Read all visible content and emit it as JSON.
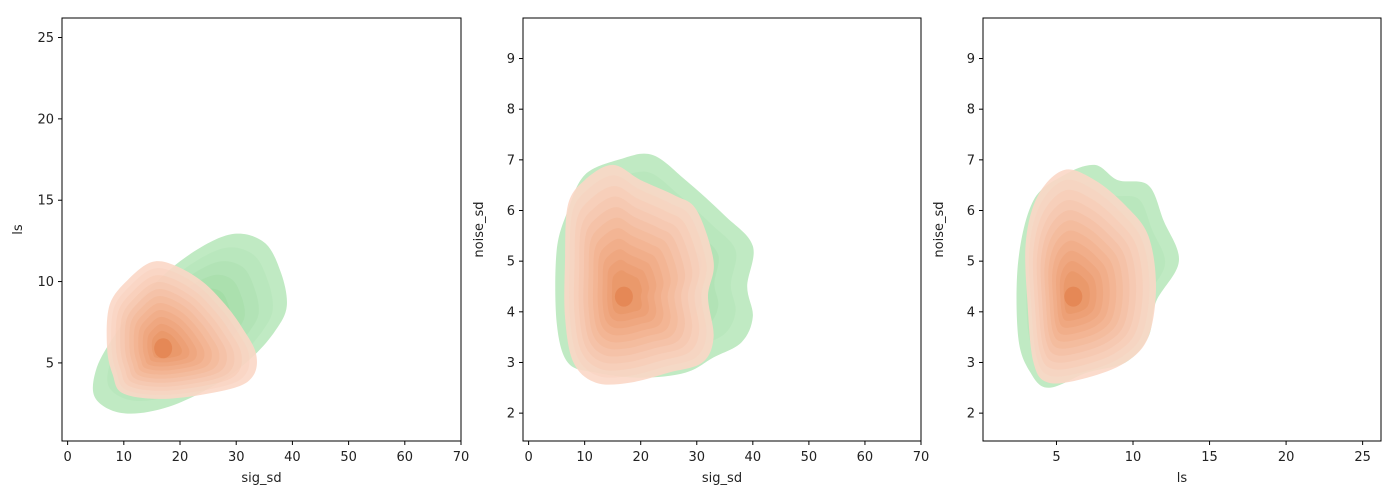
{
  "colors": {
    "green_fill": "#b5e6b9",
    "green_dense": "#8ed28f",
    "peach_fill": "#fbd7c6",
    "peach_dense": "#e8905e",
    "core": "#e07a45",
    "axis": "#000000"
  },
  "chart_data": [
    {
      "type": "kde-contour",
      "xlabel": "sig_sd",
      "ylabel": "ls",
      "xlim": [
        -1,
        70
      ],
      "ylim": [
        0.2,
        26.2
      ],
      "xticks": [
        0,
        10,
        20,
        30,
        40,
        50,
        60,
        70
      ],
      "yticks": [
        5,
        10,
        15,
        20,
        25
      ],
      "series": [
        {
          "color": "green",
          "center": [
            22,
            7.2
          ],
          "outer": [
            [
              10,
              1.9
            ],
            [
              18,
              2.3
            ],
            [
              27,
              3.8
            ],
            [
              33,
              5.4
            ],
            [
              37,
              7.0
            ],
            [
              39,
              8.5
            ],
            [
              38,
              10.5
            ],
            [
              35,
              12.4
            ],
            [
              29,
              12.9
            ],
            [
              21,
              11.5
            ],
            [
              14,
              9.3
            ],
            [
              8,
              6.5
            ],
            [
              5,
              4.5
            ],
            [
              5,
              2.8
            ]
          ],
          "levels": 6
        },
        {
          "color": "peach",
          "center": [
            17,
            5.9
          ],
          "outer": [
            [
              10,
              3.1
            ],
            [
              18,
              2.8
            ],
            [
              29,
              3.4
            ],
            [
              33,
              4.2
            ],
            [
              33.5,
              5.6
            ],
            [
              31,
              7.2
            ],
            [
              28,
              8.6
            ],
            [
              24,
              10.0
            ],
            [
              19,
              11.0
            ],
            [
              15,
              11.2
            ],
            [
              11,
              10.2
            ],
            [
              7.5,
              8.6
            ],
            [
              7,
              6.0
            ],
            [
              8,
              4.3
            ]
          ],
          "levels": 11
        }
      ]
    },
    {
      "type": "kde-contour",
      "xlabel": "sig_sd",
      "ylabel": "noise_sd",
      "xlim": [
        -1,
        70
      ],
      "ylim": [
        1.45,
        9.8
      ],
      "xticks": [
        0,
        10,
        20,
        30,
        40,
        50,
        60,
        70
      ],
      "yticks": [
        2,
        3,
        4,
        5,
        6,
        7,
        8,
        9
      ],
      "series": [
        {
          "color": "green",
          "center": [
            19,
            4.7
          ],
          "outer": [
            [
              12,
              2.8
            ],
            [
              20,
              2.7
            ],
            [
              28,
              2.8
            ],
            [
              33,
              3.1
            ],
            [
              38,
              3.4
            ],
            [
              40,
              3.9
            ],
            [
              39,
              4.5
            ],
            [
              40,
              5.3
            ],
            [
              35,
              5.9
            ],
            [
              28,
              6.6
            ],
            [
              22,
              7.1
            ],
            [
              16,
              7.0
            ],
            [
              10,
              6.7
            ],
            [
              7,
              6.0
            ],
            [
              5,
              5.2
            ],
            [
              5,
              3.8
            ],
            [
              7,
              3.0
            ]
          ],
          "levels": 6
        },
        {
          "color": "peach",
          "center": [
            17,
            4.3
          ],
          "outer": [
            [
              12,
              2.6
            ],
            [
              18,
              2.6
            ],
            [
              25,
              2.8
            ],
            [
              31,
              3.0
            ],
            [
              33,
              3.5
            ],
            [
              32,
              4.3
            ],
            [
              33,
              5.0
            ],
            [
              30,
              6.0
            ],
            [
              26,
              6.3
            ],
            [
              20,
              6.6
            ],
            [
              15,
              6.9
            ],
            [
              10,
              6.6
            ],
            [
              7,
              6.1
            ],
            [
              6.5,
              5.0
            ],
            [
              6.5,
              3.9
            ],
            [
              8,
              3.0
            ]
          ],
          "levels": 11
        }
      ]
    },
    {
      "type": "kde-contour",
      "xlabel": "ls",
      "ylabel": "noise_sd",
      "xlim": [
        0.2,
        26.2
      ],
      "ylim": [
        1.45,
        9.8
      ],
      "xticks": [
        5,
        10,
        15,
        20,
        25
      ],
      "yticks": [
        2,
        3,
        4,
        5,
        6,
        7,
        8,
        9
      ],
      "series": [
        {
          "color": "green",
          "center": [
            6.8,
            4.6
          ],
          "outer": [
            [
              4.5,
              2.5
            ],
            [
              7,
              2.8
            ],
            [
              9.5,
              3.0
            ],
            [
              11,
              3.5
            ],
            [
              11.5,
              4.2
            ],
            [
              13,
              5.0
            ],
            [
              12,
              5.8
            ],
            [
              11,
              6.5
            ],
            [
              9,
              6.6
            ],
            [
              7.5,
              6.9
            ],
            [
              5.5,
              6.7
            ],
            [
              3.5,
              6.2
            ],
            [
              2.5,
              5.0
            ],
            [
              2.5,
              3.5
            ],
            [
              3.3,
              2.8
            ]
          ],
          "levels": 6
        },
        {
          "color": "peach",
          "center": [
            6.1,
            4.3
          ],
          "outer": [
            [
              4.5,
              2.6
            ],
            [
              7,
              2.7
            ],
            [
              9.5,
              3.0
            ],
            [
              11,
              3.5
            ],
            [
              11.5,
              4.5
            ],
            [
              11,
              5.5
            ],
            [
              9.5,
              6.1
            ],
            [
              7.5,
              6.6
            ],
            [
              5.5,
              6.8
            ],
            [
              3.8,
              6.3
            ],
            [
              3,
              5.4
            ],
            [
              3.1,
              4.2
            ],
            [
              3.5,
              3.0
            ]
          ],
          "levels": 11
        }
      ]
    }
  ]
}
